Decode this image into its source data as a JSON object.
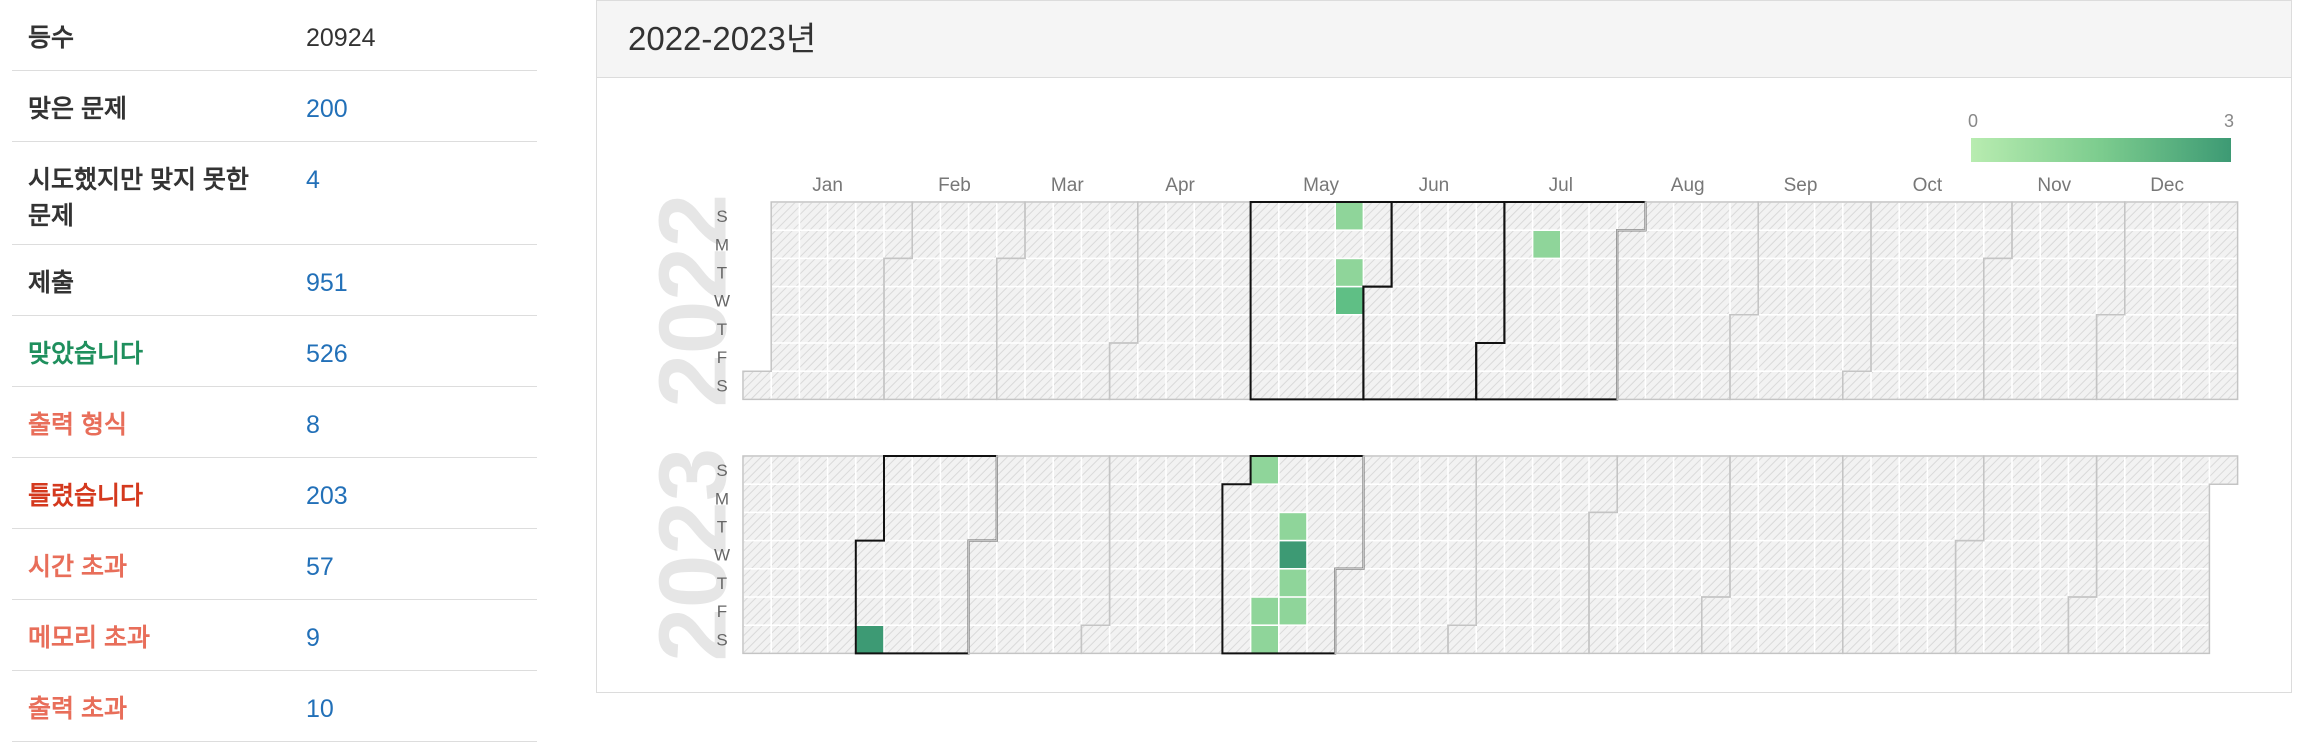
{
  "stats": [
    {
      "label": "등수",
      "value": "20924",
      "label_style": "default",
      "value_style": "plain"
    },
    {
      "label": "맞은 문제",
      "value": "200",
      "label_style": "default",
      "value_style": "link"
    },
    {
      "label": "시도했지만 맞지 못한 문제",
      "value": "4",
      "label_style": "default",
      "value_style": "link"
    },
    {
      "label": "제출",
      "value": "951",
      "label_style": "default",
      "value_style": "link"
    },
    {
      "label": "맞았습니다",
      "value": "526",
      "label_style": "green",
      "value_style": "link"
    },
    {
      "label": "출력 형식",
      "value": "8",
      "label_style": "salmon",
      "value_style": "link"
    },
    {
      "label": "틀렸습니다",
      "value": "203",
      "label_style": "red",
      "value_style": "link"
    },
    {
      "label": "시간 초과",
      "value": "57",
      "label_style": "salmon",
      "value_style": "link"
    },
    {
      "label": "메모리 초과",
      "value": "9",
      "label_style": "salmon",
      "value_style": "link"
    },
    {
      "label": "출력 초과",
      "value": "10",
      "label_style": "salmon",
      "value_style": "link"
    }
  ],
  "panel": {
    "title": "2022-2023년"
  },
  "legend": {
    "min_label": "0",
    "max_label": "3",
    "colors": [
      "#b8ecb0",
      "#7ccc8e",
      "#3d9a74"
    ]
  },
  "colors": {
    "cell_empty": "#ececec",
    "level1": "#8fd59a",
    "level2": "#5fbf85",
    "level3": "#3d9a74",
    "month_border": "#c4c4c4",
    "highlight_border": "#111111"
  },
  "month_labels": [
    "Jan",
    "Feb",
    "Mar",
    "Apr",
    "May",
    "Jun",
    "Jul",
    "Aug",
    "Sep",
    "Oct",
    "Nov",
    "Dec"
  ],
  "weekday_labels": [
    "S",
    "M",
    "T",
    "W",
    "T",
    "F",
    "S"
  ],
  "years": [
    {
      "year": "2022",
      "start_offset": 6,
      "days": 365,
      "highlight_months": [
        5,
        6,
        7
      ],
      "activity": [
        {
          "date": "2022-05-22",
          "level": 1
        },
        {
          "date": "2022-05-24",
          "level": 1
        },
        {
          "date": "2022-05-25",
          "level": 2
        },
        {
          "date": "2022-07-11",
          "level": 1
        }
      ]
    },
    {
      "year": "2023",
      "start_offset": 0,
      "days": 365,
      "highlight_months": [
        2,
        5
      ],
      "activity": [
        {
          "date": "2023-02-04",
          "level": 3
        },
        {
          "date": "2023-05-07",
          "level": 1
        },
        {
          "date": "2023-05-12",
          "level": 1
        },
        {
          "date": "2023-05-13",
          "level": 1
        },
        {
          "date": "2023-05-16",
          "level": 1
        },
        {
          "date": "2023-05-17",
          "level": 3
        },
        {
          "date": "2023-05-18",
          "level": 1
        },
        {
          "date": "2023-05-19",
          "level": 1
        }
      ]
    }
  ]
}
